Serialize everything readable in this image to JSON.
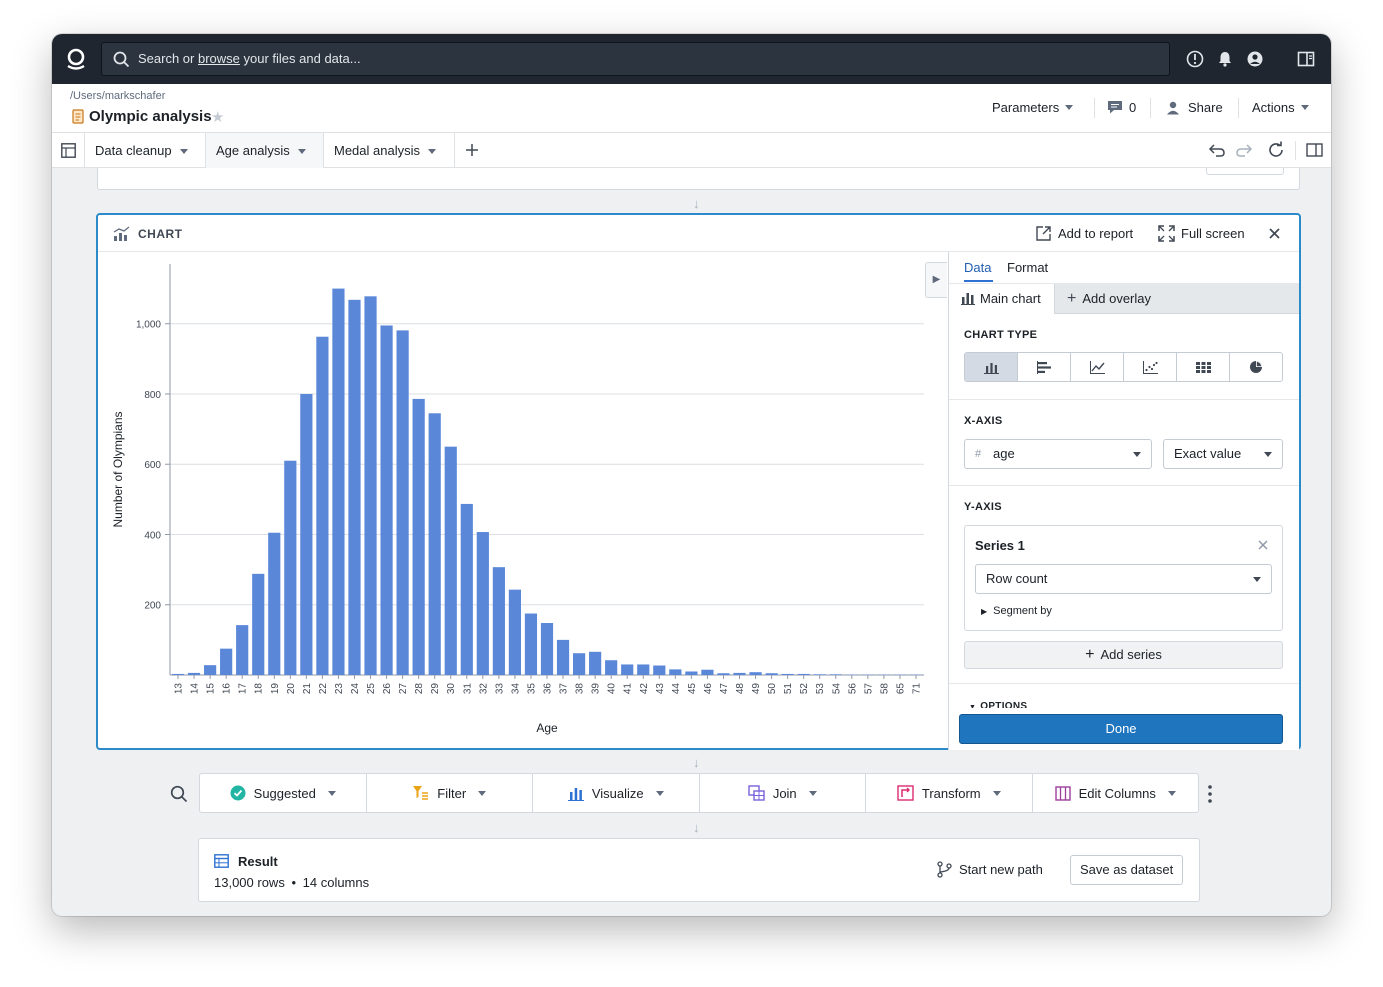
{
  "topbar": {
    "search_prefix": "Search or ",
    "search_link": "browse",
    "search_suffix": " your files and data..."
  },
  "header": {
    "breadcrumb": "/Users/markschafer",
    "title": "Olympic analysis",
    "parameters_label": "Parameters",
    "comments_count": "0",
    "share_label": "Share",
    "actions_label": "Actions"
  },
  "tabs": [
    {
      "label": "Data cleanup"
    },
    {
      "label": "Age analysis"
    },
    {
      "label": "Medal analysis"
    }
  ],
  "chart_card": {
    "title": "CHART",
    "add_to_report": "Add to report",
    "full_screen": "Full screen"
  },
  "chart_data": {
    "type": "bar",
    "xlabel": "Age",
    "ylabel": "Number of Olympians",
    "ylim": [
      0,
      1170
    ],
    "yticks": [
      200,
      400,
      600,
      800,
      1000
    ],
    "ytick_labels": [
      "200",
      "400",
      "600",
      "800",
      "1,000"
    ],
    "grid": true,
    "categories": [
      "13",
      "14",
      "15",
      "16",
      "17",
      "18",
      "19",
      "20",
      "21",
      "22",
      "23",
      "24",
      "25",
      "26",
      "27",
      "28",
      "29",
      "30",
      "31",
      "32",
      "33",
      "34",
      "35",
      "36",
      "37",
      "38",
      "39",
      "40",
      "41",
      "42",
      "43",
      "44",
      "45",
      "46",
      "47",
      "48",
      "49",
      "50",
      "51",
      "52",
      "53",
      "54",
      "56",
      "57",
      "58",
      "65",
      "71"
    ],
    "values": [
      3,
      6,
      28,
      75,
      142,
      288,
      405,
      610,
      800,
      963,
      1100,
      1068,
      1078,
      995,
      981,
      786,
      745,
      650,
      487,
      407,
      307,
      243,
      175,
      148,
      100,
      62,
      66,
      42,
      30,
      30,
      27,
      16,
      10,
      15,
      5,
      6,
      8,
      5,
      3,
      3,
      2,
      2,
      1,
      1,
      1,
      1,
      1
    ],
    "color": "#5b87d9"
  },
  "panel": {
    "tab_data": "Data",
    "tab_format": "Format",
    "subtab_main": "Main chart",
    "subtab_overlay": "Add overlay",
    "chart_type_label": "CHART TYPE",
    "x_axis_label": "X-AXIS",
    "x_field": "age",
    "x_mode": "Exact value",
    "y_axis_label": "Y-AXIS",
    "series_name": "Series 1",
    "series_agg": "Row count",
    "segment_by": "Segment by",
    "add_series": "Add series",
    "options_label": "OPTIONS",
    "done": "Done"
  },
  "toolbar": [
    {
      "label": "Suggested"
    },
    {
      "label": "Filter"
    },
    {
      "label": "Visualize"
    },
    {
      "label": "Join"
    },
    {
      "label": "Transform"
    },
    {
      "label": "Edit Columns"
    }
  ],
  "result": {
    "title": "Result",
    "rows": "13,000 rows",
    "dot": "•",
    "columns": "14 columns",
    "start_new_path": "Start new path",
    "save_as_dataset": "Save as dataset"
  }
}
